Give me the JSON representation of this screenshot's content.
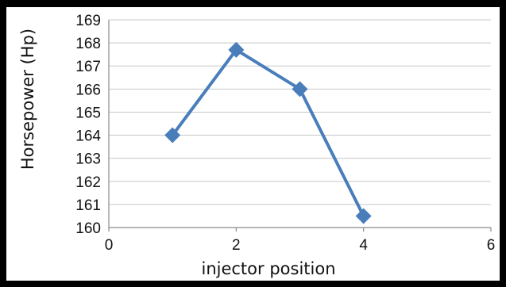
{
  "chart_data": {
    "type": "line",
    "title": "",
    "xlabel": "injector position",
    "ylabel": "Horsepower (Hp)",
    "xlim": [
      0,
      6
    ],
    "ylim": [
      160,
      169
    ],
    "x_ticks": [
      "0",
      "2",
      "4",
      "6"
    ],
    "y_ticks": [
      "160",
      "161",
      "162",
      "163",
      "164",
      "165",
      "166",
      "167",
      "168",
      "169"
    ],
    "grid": "horizontal",
    "legend": "none",
    "series": [
      {
        "color": "#4a7ebb",
        "marker": "diamond",
        "x": [
          1,
          2,
          3,
          4
        ],
        "y": [
          164,
          167.7,
          166,
          160.5
        ]
      }
    ]
  }
}
